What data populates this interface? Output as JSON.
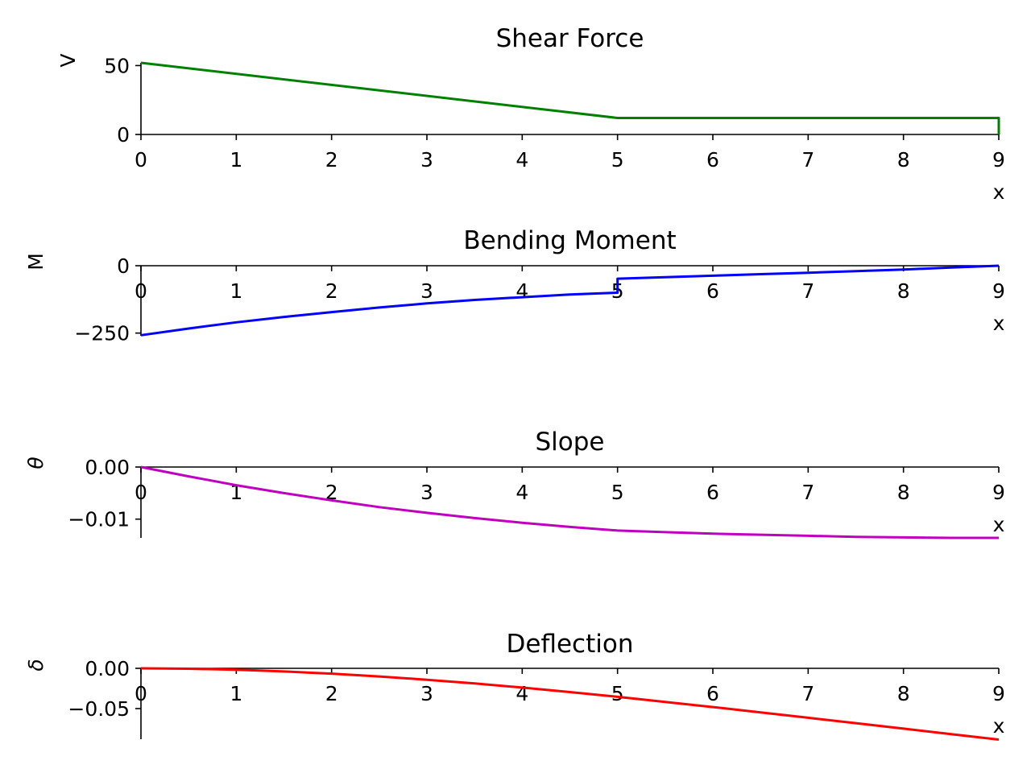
{
  "chart_data": [
    {
      "type": "line",
      "title": "Shear Force",
      "xlabel": "x",
      "ylabel": "V",
      "xlim": [
        0,
        9
      ],
      "ylim": [
        0,
        52
      ],
      "color": "#008000",
      "xticks": [
        "0",
        "1",
        "2",
        "3",
        "4",
        "5",
        "6",
        "7",
        "8",
        "9"
      ],
      "yticks": [
        {
          "value": 0,
          "label": "0"
        },
        {
          "value": 50,
          "label": "50"
        }
      ],
      "x": [
        0,
        5,
        5,
        9,
        9
      ],
      "y": [
        52,
        12,
        12,
        12,
        0
      ]
    },
    {
      "type": "line",
      "title": "Bending Moment",
      "xlabel": "x",
      "ylabel": "M",
      "xlim": [
        0,
        9
      ],
      "ylim": [
        -260,
        0
      ],
      "color": "#0000ff",
      "xticks": [
        "0",
        "1",
        "2",
        "3",
        "4",
        "5",
        "6",
        "7",
        "8",
        "9"
      ],
      "yticks": [
        {
          "value": 0,
          "label": "0"
        },
        {
          "value": -250,
          "label": "−250"
        }
      ],
      "x": [
        0,
        0.5,
        1,
        1.5,
        2,
        2.5,
        3,
        3.5,
        4,
        4.5,
        5,
        5,
        5.5,
        6,
        6.5,
        7,
        7.5,
        8,
        8.5,
        9
      ],
      "y": [
        -258,
        -233,
        -210,
        -190,
        -172,
        -155,
        -140,
        -127,
        -117,
        -107,
        -100,
        -48,
        -42.5,
        -37,
        -31.5,
        -26,
        -20,
        -14,
        -7,
        0
      ]
    },
    {
      "type": "line",
      "title": "Slope",
      "xlabel": "x",
      "ylabel": "θ",
      "xlim": [
        0,
        9
      ],
      "ylim": [
        -0.0136,
        0
      ],
      "color": "#bf00bf",
      "xticks": [
        "0",
        "1",
        "2",
        "3",
        "4",
        "5",
        "6",
        "7",
        "8",
        "9"
      ],
      "yticks": [
        {
          "value": 0,
          "label": "0.00"
        },
        {
          "value": -0.01,
          "label": "−0.01"
        }
      ],
      "x": [
        0,
        0.5,
        1,
        1.5,
        2,
        2.5,
        3,
        3.5,
        4,
        4.5,
        5,
        5.5,
        6,
        6.5,
        7,
        7.5,
        8,
        8.5,
        9
      ],
      "y": [
        0,
        -0.0018,
        -0.0035,
        -0.005,
        -0.0064,
        -0.0077,
        -0.0088,
        -0.0098,
        -0.0107,
        -0.0115,
        -0.0122,
        -0.0125,
        -0.0128,
        -0.013,
        -0.0132,
        -0.0134,
        -0.0135,
        -0.0136,
        -0.0136
      ]
    },
    {
      "type": "line",
      "title": "Deflection",
      "xlabel": "x",
      "ylabel": "δ",
      "xlim": [
        0,
        9
      ],
      "ylim": [
        -0.088,
        0
      ],
      "color": "#ff0000",
      "xticks": [
        "0",
        "1",
        "2",
        "3",
        "4",
        "5",
        "6",
        "7",
        "8",
        "9"
      ],
      "yticks": [
        {
          "value": 0,
          "label": "0.00"
        },
        {
          "value": -0.05,
          "label": "−0.05"
        }
      ],
      "x": [
        0,
        0.5,
        1,
        1.5,
        2,
        2.5,
        3,
        3.5,
        4,
        4.5,
        5,
        5.5,
        6,
        6.5,
        7,
        7.5,
        8,
        8.5,
        9
      ],
      "y": [
        0,
        -0.0005,
        -0.0018,
        -0.0039,
        -0.0066,
        -0.0101,
        -0.0142,
        -0.0188,
        -0.0239,
        -0.0295,
        -0.0354,
        -0.0417,
        -0.0481,
        -0.0547,
        -0.0614,
        -0.0681,
        -0.0749,
        -0.0817,
        -0.0885
      ]
    }
  ]
}
